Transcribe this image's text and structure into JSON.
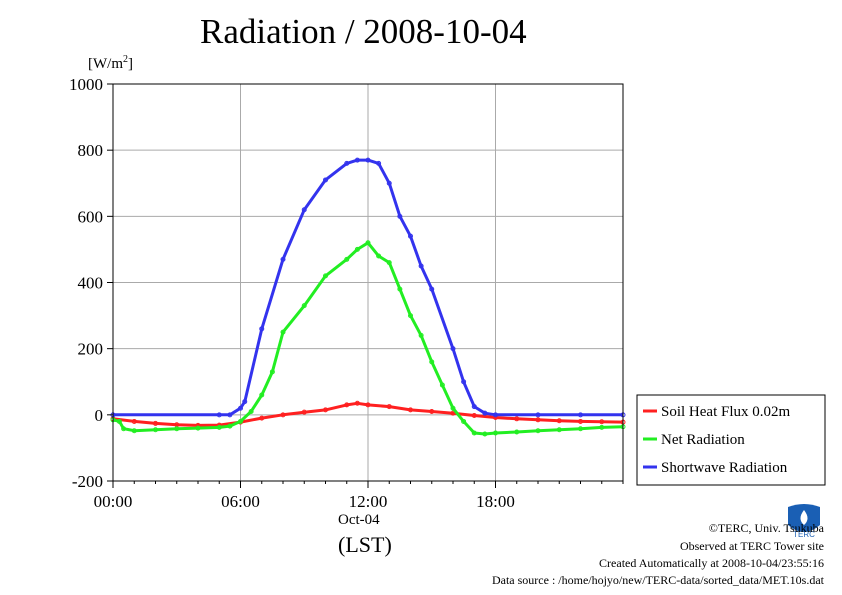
{
  "title": "Radiation / 2008-10-04",
  "unit": {
    "prefix": "[W/m",
    "sup": "2",
    "suffix": "]"
  },
  "xaxis": {
    "ticks": [
      "00:00",
      "06:00",
      "12:00",
      "18:00"
    ],
    "date_label": "Oct-04",
    "zone_label": "(LST)"
  },
  "credits": {
    "copyright": "©TERC, Univ. Tsukuba",
    "site": "Observed at TERC Tower site",
    "created": "Created Automatically at 2008-10-04/23:55:16",
    "source": "Data source : /home/hojyo/new/TERC-data/sorted_data/MET.10s.dat"
  },
  "logo_text": "TERC",
  "chart_data": {
    "type": "line",
    "title": "Radiation / 2008-10-04",
    "xlabel": "Oct-04 (LST)",
    "ylabel": "[W/m2]",
    "xlim": [
      0,
      24
    ],
    "ylim": [
      -200,
      1000
    ],
    "xticks": [
      0,
      6,
      12,
      18
    ],
    "yticks": [
      -200,
      0,
      200,
      400,
      600,
      800,
      1000
    ],
    "grid": true,
    "legend_position": "right-bottom outside",
    "x_unit": "hour",
    "series": [
      {
        "name": "Soil Heat Flux 0.02m",
        "color": "#ff2020",
        "x": [
          0,
          1,
          2,
          3,
          4,
          5,
          6,
          7,
          8,
          9,
          10,
          11,
          11.5,
          12,
          13,
          14,
          15,
          16,
          17,
          18,
          19,
          20,
          21,
          22,
          23,
          24
        ],
        "values": [
          -12,
          -20,
          -26,
          -30,
          -32,
          -31,
          -22,
          -10,
          0,
          8,
          15,
          30,
          35,
          30,
          25,
          15,
          10,
          5,
          -2,
          -8,
          -12,
          -15,
          -18,
          -20,
          -21,
          -22
        ]
      },
      {
        "name": "Net Radiation",
        "color": "#22ee22",
        "x": [
          0,
          0.3,
          0.5,
          1,
          2,
          3,
          4,
          5,
          5.5,
          6,
          6.5,
          7,
          7.5,
          8,
          9,
          10,
          11,
          11.5,
          12,
          12.5,
          13,
          13.5,
          14,
          14.5,
          15,
          15.5,
          16,
          16.5,
          17,
          17.5,
          18,
          19,
          20,
          21,
          22,
          23,
          24
        ],
        "values": [
          -15,
          -20,
          -42,
          -48,
          -45,
          -42,
          -40,
          -38,
          -34,
          -20,
          10,
          60,
          130,
          250,
          330,
          420,
          470,
          500,
          520,
          480,
          460,
          380,
          300,
          240,
          160,
          90,
          20,
          -20,
          -55,
          -58,
          -55,
          -52,
          -48,
          -45,
          -42,
          -38,
          -36
        ]
      },
      {
        "name": "Shortwave Radiation",
        "color": "#3333ee",
        "x": [
          0,
          5,
          5.5,
          6,
          6.2,
          7,
          8,
          9,
          10,
          11,
          11.5,
          12,
          12.5,
          13,
          13.5,
          14,
          14.5,
          15,
          16,
          16.5,
          17,
          17.5,
          18,
          20,
          22,
          24
        ],
        "values": [
          0,
          0,
          0,
          20,
          40,
          260,
          470,
          620,
          710,
          760,
          770,
          770,
          760,
          700,
          600,
          540,
          450,
          380,
          200,
          100,
          25,
          5,
          0,
          0,
          0,
          0
        ]
      }
    ]
  }
}
